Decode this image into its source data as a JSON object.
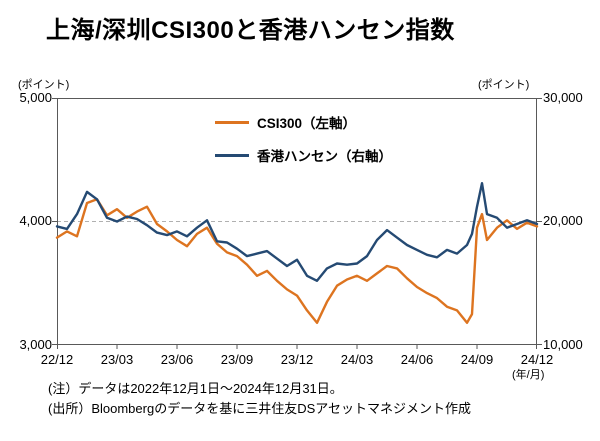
{
  "title": "上海/深圳CSI300と香港ハンセン指数",
  "axes": {
    "left_unit": "(ポイント)",
    "right_unit": "(ポイント)",
    "x_unit": "(年/月)",
    "left_ticks": [
      "5,000",
      "4,000",
      "3,000"
    ],
    "right_ticks": [
      "30,000",
      "20,000",
      "10,000"
    ],
    "x_ticks": [
      "22/12",
      "23/03",
      "23/06",
      "23/09",
      "23/12",
      "24/03",
      "24/06",
      "24/09",
      "24/12"
    ]
  },
  "legend": [
    {
      "label": "CSI300（左軸）",
      "color": "#DD7420"
    },
    {
      "label": "香港ハンセン（右軸）",
      "color": "#254A73"
    }
  ],
  "notes": [
    "(注）データは2022年12月1日～2024年12月31日。",
    "(出所）Bloombergのデータを基に三井住友DSアセットマネジメント作成"
  ],
  "chart_data": {
    "type": "line",
    "x_label_unit": "year/month (YY/MM)",
    "x_months_from_2212": [
      0,
      0.5,
      1,
      1.5,
      2,
      2.5,
      3,
      3.5,
      4,
      4.5,
      5,
      5.5,
      6,
      6.5,
      7,
      7.5,
      8,
      8.5,
      9,
      9.5,
      10,
      10.5,
      11,
      11.5,
      12,
      12.5,
      13,
      13.5,
      14,
      14.5,
      15,
      15.5,
      16,
      16.5,
      17,
      17.5,
      18,
      18.5,
      19,
      19.5,
      20,
      20.5,
      20.75,
      21,
      21.25,
      21.5,
      22,
      22.5,
      23,
      23.5,
      24
    ],
    "series": [
      {
        "name": "CSI300",
        "axis": "left",
        "color": "#DD7420",
        "values": [
          3870,
          3920,
          3880,
          4150,
          4180,
          4050,
          4100,
          4030,
          4080,
          4120,
          3980,
          3920,
          3850,
          3800,
          3900,
          3950,
          3820,
          3750,
          3720,
          3650,
          3560,
          3600,
          3520,
          3450,
          3400,
          3280,
          3180,
          3350,
          3480,
          3530,
          3560,
          3520,
          3580,
          3640,
          3620,
          3540,
          3470,
          3420,
          3380,
          3310,
          3280,
          3180,
          3250,
          3950,
          4060,
          3850,
          3950,
          4010,
          3940,
          3990,
          3960
        ]
      },
      {
        "name": "香港ハンセン",
        "axis": "right",
        "color": "#254A73",
        "values": [
          19600,
          19400,
          20600,
          22400,
          21800,
          20300,
          20000,
          20400,
          20200,
          19700,
          19100,
          18900,
          19200,
          18800,
          19500,
          20100,
          18400,
          18300,
          17800,
          17200,
          17400,
          17600,
          17000,
          16400,
          16900,
          15600,
          15200,
          16200,
          16600,
          16500,
          16600,
          17200,
          18500,
          19300,
          18700,
          18100,
          17700,
          17300,
          17100,
          17700,
          17400,
          18100,
          19000,
          21200,
          23100,
          20600,
          20300,
          19500,
          19800,
          20100,
          19800
        ]
      }
    ],
    "xlim": [
      0,
      24
    ],
    "left_ylim": [
      3000,
      5000
    ],
    "right_ylim": [
      10000,
      30000
    ],
    "x_tick_positions": [
      0,
      3,
      6,
      9,
      12,
      15,
      18,
      21,
      24
    ],
    "grid": "dashed horizontal line at left 4,000 / right 20,000",
    "legend_position": "top-center inside plot"
  }
}
